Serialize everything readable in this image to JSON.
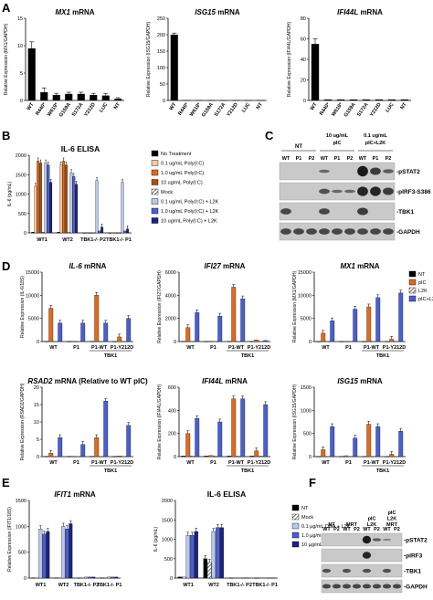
{
  "panels": {
    "A": "A",
    "B": "B",
    "C": "C",
    "D": "D",
    "E": "E",
    "F": "F"
  },
  "colors": {
    "black": "#000000",
    "tan": "#f4c9a0",
    "orange": "#e06a1e",
    "darkorange": "#b14d0e",
    "hatch": "#777777",
    "lightblue": "#b9c9ec",
    "blue": "#4a5fd0",
    "navy": "#1a237e",
    "gray_bar": "#cccccc"
  },
  "western_C": {
    "header_nt": "NT",
    "header_pic": "10 ug/mL\npIC",
    "header_pic_l2k": "0.1 ug/mL\npIC+L2K",
    "lanes": [
      "WT",
      "P1",
      "P2",
      "WT",
      "P1",
      "P2",
      "WT",
      "P1",
      "P2"
    ],
    "bands": [
      "-pSTAT2",
      "-pIRF3-S386",
      "-TBK1",
      "-GAPDH"
    ]
  },
  "western_F": {
    "headers": [
      "NT",
      "MRT",
      "pIC\nL2K",
      "pIC\nL2K\nMRT"
    ],
    "lanes": [
      "WT",
      "P2",
      "WT",
      "P2",
      "WT",
      "P2",
      "WT",
      "P2"
    ],
    "bands": [
      "-pSTAT2",
      "-pIRF3",
      "-TBK1",
      "-GAPDH"
    ]
  },
  "legend_B": [
    {
      "label": "No Treatment",
      "color": "#000000",
      "pattern": "solid"
    },
    {
      "label": "0.1 ug/mL Poly(I:C)",
      "color": "#f4c9a0",
      "pattern": "solid"
    },
    {
      "label": "1.0 ug/mL Poly(I:C)",
      "color": "#e06a1e",
      "pattern": "solid"
    },
    {
      "label": "10 ug/mL Poly(I:C)",
      "color": "#b14d0e",
      "pattern": "solid"
    },
    {
      "label": "Mock",
      "color": "#777777",
      "pattern": "hatch"
    },
    {
      "label": "0.1 ug/mL Poly(I:C) + L2K",
      "color": "#b9c9ec",
      "pattern": "solid"
    },
    {
      "label": "1.0 ug/mL Poly(I:C) + L2K",
      "color": "#4a5fd0",
      "pattern": "solid"
    },
    {
      "label": "10 ug/mL Poly(I:C) + L2K",
      "color": "#1a237e",
      "pattern": "solid"
    }
  ],
  "legend_D": [
    {
      "label": "NT",
      "color": "#000000",
      "pattern": "solid"
    },
    {
      "label": "pIC",
      "color": "#e06a1e",
      "pattern": "solid"
    },
    {
      "label": "L2K",
      "color": "#777777",
      "pattern": "hatch"
    },
    {
      "label": "pIC+L2K",
      "color": "#4a5fd0",
      "pattern": "solid"
    }
  ],
  "legend_E": [
    {
      "label": "NT",
      "color": "#000000",
      "pattern": "solid"
    },
    {
      "label": "Mock",
      "color": "#777777",
      "pattern": "hatch"
    },
    {
      "label": "0.1 µg/mL DNA + L2K",
      "color": "#b9c9ec",
      "pattern": "solid"
    },
    {
      "label": "1.0 µg/mL DNA + L2K",
      "color": "#4a5fd0",
      "pattern": "solid"
    },
    {
      "label": "10 µg/mL DNA + L2K",
      "color": "#1a237e",
      "pattern": "solid"
    }
  ],
  "chart_data": [
    {
      "id": "A1",
      "type": "bar",
      "title": "MX1 mRNA",
      "title_italic": "MX1",
      "title_rest": " mRNA",
      "ylabel": "Relative Expression (MX1/GAPDH)",
      "ylim": [
        0,
        15
      ],
      "yticks": [
        0,
        5,
        10,
        15
      ],
      "categories": [
        "WT",
        "R440*",
        "W619*",
        "G159A",
        "S172A",
        "Y212D",
        "LUC",
        "NT"
      ],
      "series": [
        {
          "values": [
            9.5,
            1.5,
            1.0,
            1.2,
            1.2,
            1.0,
            0.9,
            0.3
          ],
          "errors": [
            1.2,
            0.8,
            0.3,
            0.3,
            0.3,
            0.3,
            0.4,
            0.2
          ],
          "colors": [
            "#000000"
          ]
        }
      ]
    },
    {
      "id": "A2",
      "type": "bar",
      "title": "ISG15 mRNA",
      "title_italic": "ISG15",
      "title_rest": " mRNA",
      "ylabel": "Relative Expression (ISG15/GAPDH)",
      "ylim": [
        0,
        250
      ],
      "yticks": [
        0,
        50,
        100,
        150,
        200,
        250
      ],
      "categories": [
        "WT",
        "R440*",
        "W619*",
        "G159A",
        "S172A",
        "Y212D",
        "LUC",
        "NT"
      ],
      "series": [
        {
          "values": [
            200,
            1,
            1,
            1,
            1,
            1,
            1,
            1
          ],
          "errors": [
            5,
            0,
            0,
            0,
            0,
            0,
            0,
            0
          ],
          "colors": [
            "#000000"
          ]
        }
      ]
    },
    {
      "id": "A3",
      "type": "bar",
      "title": "IFI44L mRNA",
      "title_italic": "IFI44L",
      "title_rest": " mRNA",
      "ylabel": "Relative Expression (IFI44L/GAPDH)",
      "ylim": [
        0,
        80
      ],
      "yticks": [
        0,
        20,
        40,
        60,
        80
      ],
      "categories": [
        "WT",
        "R440*",
        "W619*",
        "G159A",
        "S172A",
        "Y212D",
        "LUC",
        "NT"
      ],
      "series": [
        {
          "values": [
            55,
            1,
            1,
            1,
            1,
            1,
            1,
            1
          ],
          "errors": [
            5,
            0,
            0,
            0,
            0,
            0,
            0,
            0
          ],
          "colors": [
            "#000000"
          ]
        }
      ]
    },
    {
      "id": "B",
      "type": "bar",
      "title": "IL-6 ELISA",
      "ylabel": "IL-6 (pg/mL)",
      "ylim": [
        0,
        2000
      ],
      "yticks": [
        0,
        500,
        1000,
        1500,
        2000
      ],
      "categories": [
        "WT1",
        "WT2",
        "TBK1-/- P2",
        "TBK1-/- P1"
      ],
      "series": [
        {
          "name": "No Treatment",
          "values": [
            20,
            20,
            0,
            0
          ]
        },
        {
          "name": "0.1 ug/mL Poly(I:C)",
          "values": [
            1200,
            1750,
            0,
            0
          ]
        },
        {
          "name": "1.0 ug/mL Poly(I:C)",
          "values": [
            1850,
            1850,
            0,
            0
          ]
        },
        {
          "name": "10 ug/mL Poly(I:C)",
          "values": [
            1800,
            1750,
            0,
            0
          ]
        },
        {
          "name": "Mock",
          "values": [
            20,
            20,
            0,
            0
          ]
        },
        {
          "name": "0.1 ug/mL Poly(I:C) + L2K",
          "values": [
            1800,
            1550,
            1350,
            1300
          ]
        },
        {
          "name": "1.0 ug/mL Poly(I:C) + L2K",
          "values": [
            1750,
            1450,
            50,
            50
          ]
        },
        {
          "name": "10 ug/mL Poly(I:C) + L2K",
          "values": [
            1300,
            1250,
            150,
            100
          ]
        }
      ]
    },
    {
      "id": "D1",
      "type": "bar",
      "title": "IL-6 mRNA",
      "title_italic": "IL-6",
      "title_rest": " mRNA",
      "ylabel": "Relative Expression (IL-6/18S)",
      "ylim": [
        0,
        15000
      ],
      "yticks": [
        0,
        5000,
        10000,
        15000
      ],
      "categories": [
        "WT",
        "P1",
        "P1-WT",
        "P1-Y212D"
      ],
      "group_label": "TBK1",
      "series": [
        {
          "name": "NT",
          "values": [
            50,
            20,
            50,
            20
          ]
        },
        {
          "name": "pIC",
          "values": [
            7200,
            30,
            10000,
            1000
          ]
        },
        {
          "name": "L2K",
          "values": [
            50,
            20,
            50,
            20
          ]
        },
        {
          "name": "pIC+L2K",
          "values": [
            4000,
            4000,
            4000,
            5000
          ]
        }
      ]
    },
    {
      "id": "D2",
      "type": "bar",
      "title": "IFI27 mRNA",
      "title_italic": "IFI27",
      "title_rest": " mRNA",
      "ylabel": "Relative Expression (IFI27/GAPDH)",
      "ylim": [
        0,
        6000
      ],
      "yticks": [
        0,
        2000,
        4000,
        6000
      ],
      "categories": [
        "WT",
        "P1",
        "P1-WT",
        "P1-Y212D"
      ],
      "group_label": "TBK1",
      "series": [
        {
          "name": "NT",
          "values": [
            20,
            10,
            20,
            10
          ]
        },
        {
          "name": "pIC",
          "values": [
            1200,
            30,
            4700,
            150
          ]
        },
        {
          "name": "L2K",
          "values": [
            20,
            10,
            20,
            10
          ]
        },
        {
          "name": "pIC+L2K",
          "values": [
            2500,
            2200,
            3700,
            100
          ]
        }
      ]
    },
    {
      "id": "D3",
      "type": "bar",
      "title": "MX1 mRNA",
      "title_italic": "MX1",
      "title_rest": " mRNA",
      "ylabel": "Relative Expression (MX1/GAPDH)",
      "ylim": [
        0,
        15000
      ],
      "yticks": [
        0,
        5000,
        10000,
        15000
      ],
      "categories": [
        "WT",
        "P1",
        "P1-WT",
        "P1-Y212D"
      ],
      "group_label": "TBK1",
      "series": [
        {
          "name": "NT",
          "values": [
            20,
            20,
            20,
            20
          ]
        },
        {
          "name": "pIC",
          "values": [
            1800,
            50,
            7500,
            500
          ]
        },
        {
          "name": "L2K",
          "values": [
            20,
            20,
            20,
            20
          ]
        },
        {
          "name": "pIC+L2K",
          "values": [
            4500,
            7000,
            9500,
            10500
          ]
        }
      ]
    },
    {
      "id": "D4",
      "type": "bar",
      "title": "RSAD2 mRNA (Relative to WT pIC)",
      "title_italic": "RSAD2",
      "title_rest": " mRNA (Relative to WT pIC)",
      "ylabel": "Relative Expression (RSAD2/GAPDH)",
      "ylim": [
        0,
        20
      ],
      "yticks": [
        0,
        5,
        10,
        15,
        20
      ],
      "categories": [
        "WT",
        "P1",
        "P1-WT",
        "P1-Y212D"
      ],
      "group_label": "TBK1",
      "series": [
        {
          "name": "NT",
          "values": [
            0.1,
            0.1,
            0.1,
            0.1
          ]
        },
        {
          "name": "pIC",
          "values": [
            1.0,
            0.1,
            5.5,
            0.2
          ]
        },
        {
          "name": "L2K",
          "values": [
            0.1,
            0.1,
            0.1,
            0.1
          ]
        },
        {
          "name": "pIC+L2K",
          "values": [
            5.5,
            3.5,
            16,
            9
          ]
        }
      ]
    },
    {
      "id": "D5",
      "type": "bar",
      "title": "IFI44L mRNA",
      "title_italic": "IFI44L",
      "title_rest": " mRNA",
      "ylabel": "Relative Expression (IFI44L/GAPDH)",
      "ylim": [
        0,
        600
      ],
      "yticks": [
        0,
        200,
        400,
        600
      ],
      "categories": [
        "WT",
        "P1",
        "P1-WT",
        "P1-Y212D"
      ],
      "group_label": "TBK1",
      "series": [
        {
          "name": "NT",
          "values": [
            5,
            5,
            5,
            5
          ]
        },
        {
          "name": "pIC",
          "values": [
            200,
            10,
            500,
            50
          ]
        },
        {
          "name": "L2K",
          "values": [
            5,
            5,
            5,
            5
          ]
        },
        {
          "name": "pIC+L2K",
          "values": [
            330,
            300,
            500,
            450
          ]
        }
      ]
    },
    {
      "id": "D6",
      "type": "bar",
      "title": "ISG15 mRNA",
      "title_italic": "ISG15",
      "title_rest": " mRNA",
      "ylabel": "Relative Expression (ISG15/GAPDH)",
      "ylim": [
        0,
        1500
      ],
      "yticks": [
        0,
        500,
        1000,
        1500
      ],
      "categories": [
        "WT",
        "P1",
        "P1-WT",
        "P1-Y212D"
      ],
      "group_label": "TBK1",
      "series": [
        {
          "name": "NT",
          "values": [
            5,
            5,
            5,
            5
          ]
        },
        {
          "name": "pIC",
          "values": [
            150,
            20,
            700,
            50
          ]
        },
        {
          "name": "L2K",
          "values": [
            5,
            5,
            5,
            5
          ]
        },
        {
          "name": "pIC+L2K",
          "values": [
            650,
            400,
            650,
            550
          ]
        }
      ]
    },
    {
      "id": "E1",
      "type": "bar",
      "title": "IFIT1 mRNA",
      "title_italic": "IFIT1",
      "title_rest": " mRNA",
      "ylabel": "Relative Expression (IFIT1/18S)",
      "ylim": [
        0,
        1500
      ],
      "yticks": [
        0,
        500,
        1000,
        1500
      ],
      "categories": [
        "WT1",
        "WT2",
        "TBK1-/- P2",
        "TBK1-/- P1"
      ],
      "series": [
        {
          "name": "NT",
          "values": [
            5,
            5,
            5,
            5
          ]
        },
        {
          "name": "Mock",
          "values": [
            5,
            5,
            5,
            5
          ]
        },
        {
          "name": "0.1 µg/mL DNA + L2K",
          "values": [
            950,
            1000,
            20,
            20
          ]
        },
        {
          "name": "1.0 µg/mL DNA + L2K",
          "values": [
            850,
            950,
            20,
            20
          ]
        },
        {
          "name": "10 µg/mL DNA + L2K",
          "values": [
            900,
            1050,
            20,
            20
          ]
        }
      ]
    },
    {
      "id": "E2",
      "type": "bar",
      "title": "IL-6 ELISA",
      "ylabel": "IL-6 (pg/mL)",
      "ylim": [
        0,
        2000
      ],
      "yticks": [
        0,
        500,
        1000,
        1500,
        2000
      ],
      "categories": [
        "WT1",
        "WT2",
        "TBK1-/- P2",
        "TBK1-/- P1"
      ],
      "series": [
        {
          "name": "NT",
          "values": [
            30,
            500,
            5,
            5
          ]
        },
        {
          "name": "Mock",
          "values": [
            30,
            400,
            5,
            5
          ]
        },
        {
          "name": "0.1 µg/mL DNA + L2K",
          "values": [
            1100,
            1200,
            5,
            5
          ]
        },
        {
          "name": "1.0 µg/mL DNA + L2K",
          "values": [
            1100,
            1300,
            5,
            5
          ]
        },
        {
          "name": "10 µg/mL DNA + L2K",
          "values": [
            1200,
            1300,
            5,
            5
          ]
        }
      ]
    }
  ]
}
